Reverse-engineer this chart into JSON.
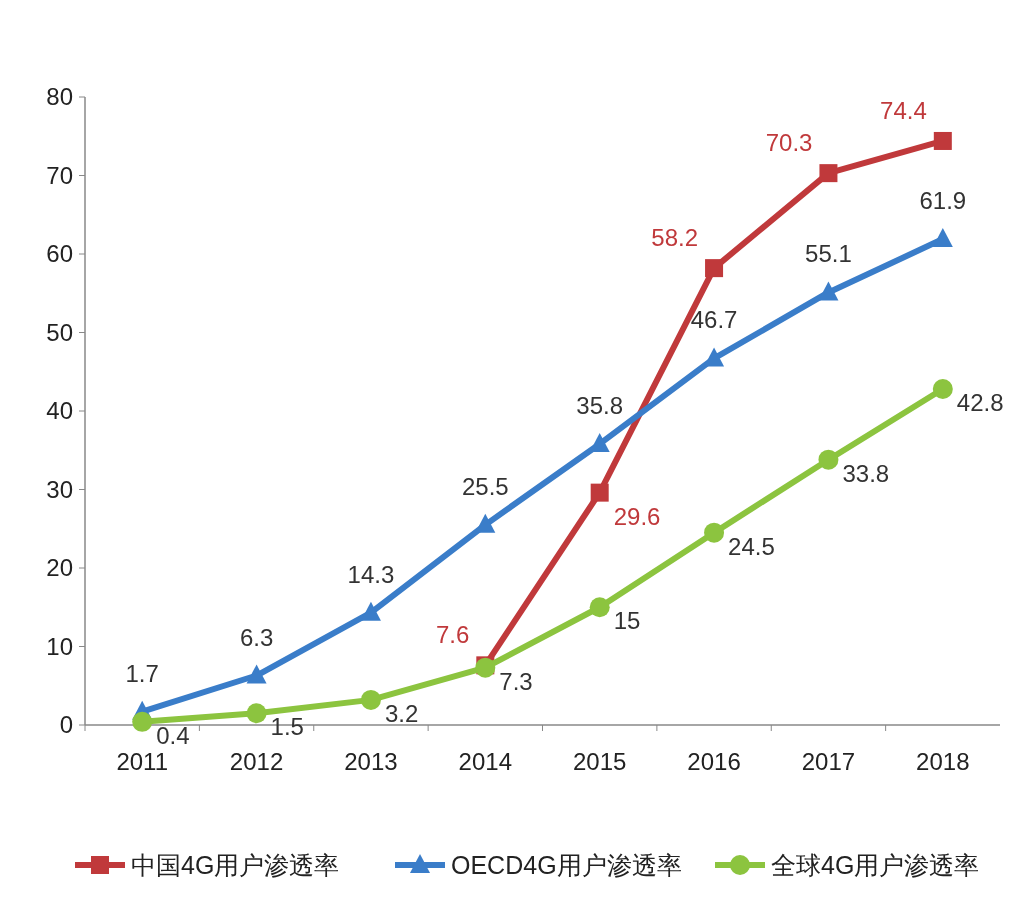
{
  "chart_data": {
    "type": "line",
    "categories": [
      "2011",
      "2012",
      "2013",
      "2014",
      "2015",
      "2016",
      "2017",
      "2018"
    ],
    "series": [
      {
        "name": "中国4G用户渗透率",
        "color": "#c0393b",
        "marker": "square",
        "values": [
          null,
          null,
          null,
          7.6,
          29.6,
          58.2,
          70.3,
          74.4
        ]
      },
      {
        "name": "OECD4G用户渗透率",
        "color": "#3a7dc9",
        "marker": "triangle",
        "values": [
          1.7,
          6.3,
          14.3,
          25.5,
          35.8,
          46.7,
          55.1,
          61.9
        ]
      },
      {
        "name": "全球4G用户渗透率",
        "color": "#8cc43f",
        "marker": "circle",
        "values": [
          0.4,
          1.5,
          3.2,
          7.3,
          15,
          24.5,
          33.8,
          42.8
        ]
      }
    ],
    "ylim": [
      0,
      80
    ],
    "yticks": [
      0,
      10,
      20,
      30,
      40,
      50,
      60,
      70,
      80
    ],
    "grid": false,
    "legend": "bottom",
    "data_labels": true
  }
}
